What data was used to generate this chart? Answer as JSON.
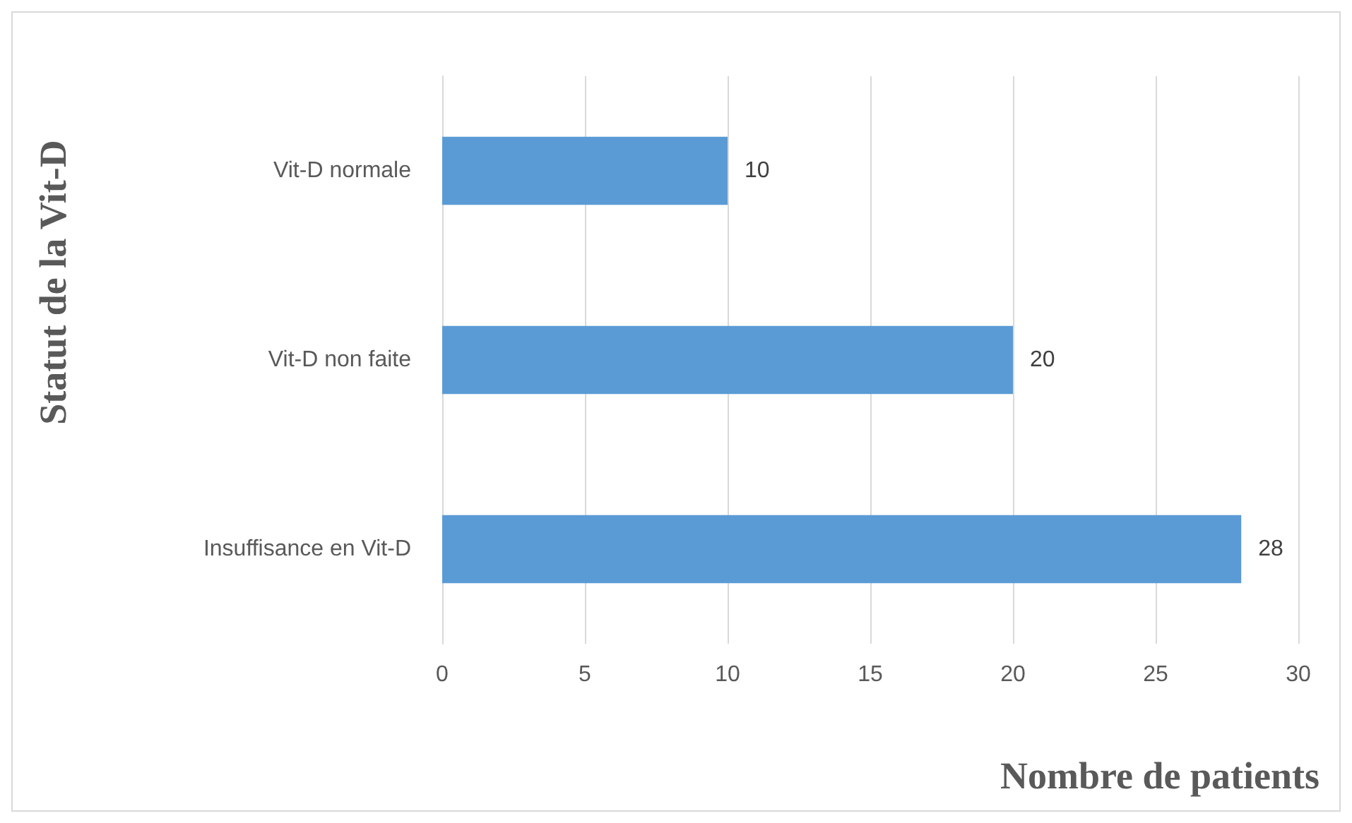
{
  "chart_data": {
    "type": "bar",
    "orientation": "horizontal",
    "categories": [
      "Vit-D normale",
      "Vit-D non faite",
      "Insuffisance en Vit-D"
    ],
    "values": [
      10,
      20,
      28
    ],
    "color": "#5b9bd5",
    "xlim": [
      0,
      30
    ],
    "xticks": [
      0,
      5,
      10,
      15,
      20,
      25,
      30
    ],
    "xlabel": "Nombre de patients",
    "ylabel": "Statut de la Vit-D",
    "grid": "x",
    "data_labels": true
  }
}
